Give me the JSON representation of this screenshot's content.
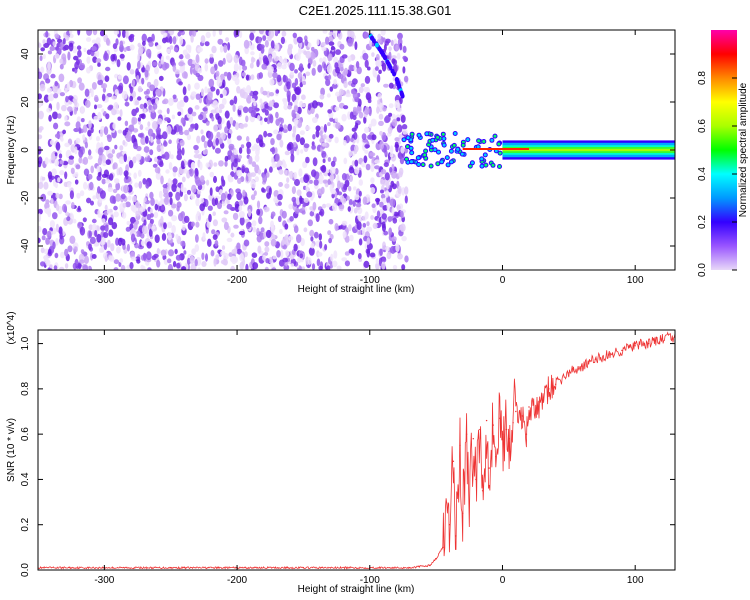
{
  "figure_title": "C2E1.2025.111.15.38.G01",
  "chart_data": [
    {
      "type": "heatmap",
      "title": "C2E1.2025.111.15.38.G01",
      "xlabel": "Height of straight line (km)",
      "ylabel": "Frequency (Hz)",
      "xlim": [
        -350,
        130
      ],
      "ylim": [
        -50,
        50
      ],
      "xticks": [
        -300,
        -200,
        -100,
        0,
        100
      ],
      "yticks": [
        -40,
        -20,
        0,
        20,
        40
      ],
      "grid": false,
      "colorbar": {
        "label": "Normalized spectral amplitude",
        "range": [
          0,
          1
        ],
        "ticks": [
          "0.0",
          "0.2",
          "0.4",
          "0.6",
          "0.8"
        ],
        "colors": [
          "#e8d8f8",
          "#9955ff",
          "#3300ff",
          "#0099ff",
          "#00ffff",
          "#00ff00",
          "#aaff00",
          "#ffff00",
          "#ff8800",
          "#ff0000",
          "#ff00aa"
        ]
      },
      "description_of_content": {
        "noise_region_x": [
          -350,
          -72
        ],
        "noise_amplitude_typical": 0.2,
        "descending_trace": {
          "x": [
            -100,
            -90,
            -80,
            -75
          ],
          "y": [
            48,
            40,
            30,
            22
          ],
          "amplitude": 0.5
        },
        "signal_ridge": {
          "x": [
            -75,
            130
          ],
          "y": 0,
          "amplitude": 0.8
        }
      }
    },
    {
      "type": "line",
      "xlabel": "Height of straight line (km)",
      "ylabel": "SNR (10 * v/v)",
      "y_multiplier": "(x10^4)",
      "xlim": [
        -350,
        130
      ],
      "ylim": [
        0,
        1.06
      ],
      "xticks": [
        -300,
        -200,
        -100,
        0,
        100
      ],
      "yticks": [
        "0.0",
        "0.2",
        "0.4",
        "0.6",
        "0.8",
        "1.0"
      ],
      "grid": false,
      "series": [
        {
          "color": "#ee3333",
          "x": [
            -350,
            -300,
            -250,
            -200,
            -150,
            -100,
            -70,
            -55,
            -50,
            -45,
            -40,
            -37,
            -35,
            -32,
            -30,
            -27,
            -25,
            -22,
            -20,
            -17,
            -15,
            -12,
            -10,
            -7,
            -5,
            -2,
            0,
            3,
            5,
            8,
            10,
            15,
            18,
            20,
            25,
            30,
            35,
            40,
            50,
            60,
            70,
            80,
            90,
            100,
            110,
            120,
            130
          ],
          "y": [
            0.01,
            0.01,
            0.01,
            0.01,
            0.01,
            0.01,
            0.01,
            0.02,
            0.05,
            0.1,
            0.2,
            0.48,
            0.15,
            0.55,
            0.25,
            0.6,
            0.3,
            0.58,
            0.4,
            0.62,
            0.35,
            0.66,
            0.45,
            0.64,
            0.5,
            0.67,
            0.6,
            0.62,
            0.58,
            0.65,
            0.7,
            0.68,
            0.6,
            0.72,
            0.7,
            0.75,
            0.8,
            0.82,
            0.87,
            0.9,
            0.93,
            0.95,
            0.97,
            0.99,
            1.0,
            1.02,
            1.03
          ]
        }
      ]
    }
  ]
}
